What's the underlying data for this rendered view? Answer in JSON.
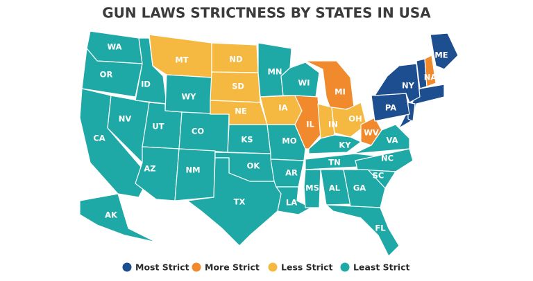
{
  "title": "GUN LAWS STRICTNESS BY STATES IN USA",
  "legend": [
    {
      "label": "Most Strict",
      "color": "#1d4e8f"
    },
    {
      "label": "More Strict",
      "color": "#f08a2c"
    },
    {
      "label": "Less Strict",
      "color": "#f5b942"
    },
    {
      "label": "Least Strict",
      "color": "#1fa9a6"
    }
  ],
  "states": [
    {
      "label": "WA",
      "category": 3
    },
    {
      "label": "OR",
      "category": 3
    },
    {
      "label": "CA",
      "category": 3
    },
    {
      "label": "NV",
      "category": 3
    },
    {
      "label": "ID",
      "category": 3
    },
    {
      "label": "MT",
      "category": 2
    },
    {
      "label": "WY",
      "category": 3
    },
    {
      "label": "UT",
      "category": 3
    },
    {
      "label": "CO",
      "category": 3
    },
    {
      "label": "AZ",
      "category": 3
    },
    {
      "label": "NM",
      "category": 3
    },
    {
      "label": "ND",
      "category": 2
    },
    {
      "label": "SD",
      "category": 2
    },
    {
      "label": "NE",
      "category": 2
    },
    {
      "label": "KS",
      "category": 3
    },
    {
      "label": "OK",
      "category": 3
    },
    {
      "label": "TX",
      "category": 3
    },
    {
      "label": "MN",
      "category": 3
    },
    {
      "label": "IA",
      "category": 2
    },
    {
      "label": "MO",
      "category": 3
    },
    {
      "label": "AR",
      "category": 3
    },
    {
      "label": "LA",
      "category": 3
    },
    {
      "label": "WI",
      "category": 3
    },
    {
      "label": "IL",
      "category": 1
    },
    {
      "label": "MI",
      "category": 1
    },
    {
      "label": "IN",
      "category": 2
    },
    {
      "label": "OH",
      "category": 2
    },
    {
      "label": "KY",
      "category": 3
    },
    {
      "label": "WV",
      "category": 1
    },
    {
      "label": "VA",
      "category": 3
    },
    {
      "label": "TN",
      "category": 3
    },
    {
      "label": "NC",
      "category": 3
    },
    {
      "label": "SC",
      "category": 3
    },
    {
      "label": "MS",
      "category": 3
    },
    {
      "label": "AL",
      "category": 3
    },
    {
      "label": "GA",
      "category": 3
    },
    {
      "label": "FL",
      "category": 3
    },
    {
      "label": "PA",
      "category": 0
    },
    {
      "label": "NY",
      "category": 0
    },
    {
      "label": "ME",
      "category": 0
    },
    {
      "label": "NA",
      "category": 1
    },
    {
      "label": "AK",
      "category": 3
    }
  ]
}
